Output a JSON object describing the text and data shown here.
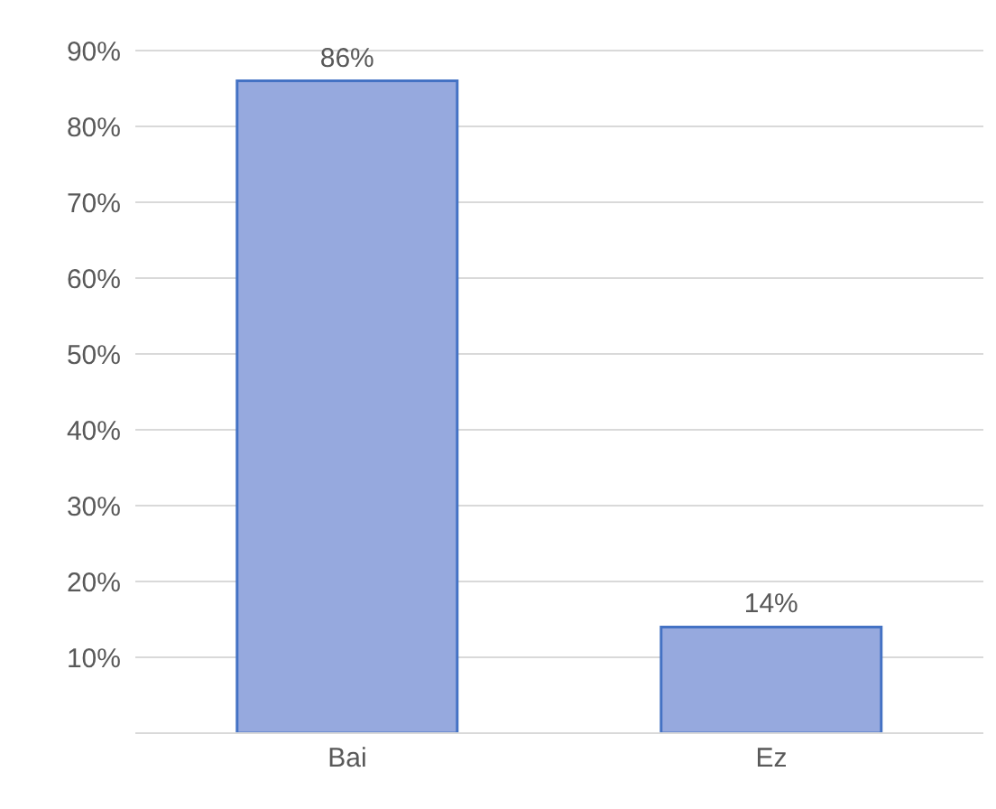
{
  "chart_data": {
    "type": "bar",
    "categories": [
      "Bai",
      "Ez"
    ],
    "values": [
      86,
      14
    ],
    "color": "#96a9de",
    "value_labels": [
      "86%",
      "14%"
    ],
    "ylim": [
      0,
      90
    ],
    "yticks": [
      {
        "value": 0,
        "label": null
      },
      {
        "value": 10,
        "label": "10%"
      },
      {
        "value": 20,
        "label": "20%"
      },
      {
        "value": 30,
        "label": "30%"
      },
      {
        "value": 40,
        "label": "40%"
      },
      {
        "value": 50,
        "label": "50%"
      },
      {
        "value": 60,
        "label": "60%"
      },
      {
        "value": 70,
        "label": "70%"
      },
      {
        "value": 80,
        "label": "80%"
      },
      {
        "value": 90,
        "label": "90%"
      }
    ],
    "grid": "y",
    "legend": false
  }
}
